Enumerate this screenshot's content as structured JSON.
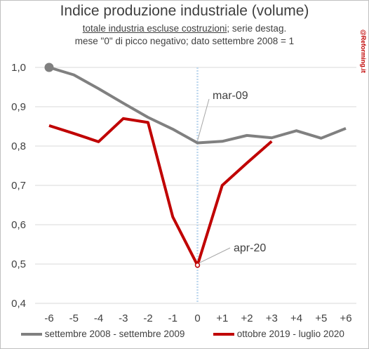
{
  "chart_data": {
    "type": "line",
    "title": "Indice produzione industriale (volume)",
    "subtitle_underlined": "totale industria escluse costruzioni",
    "subtitle_rest": "; serie destag.",
    "subtitle2": "mese \"0\" di picco negativo; dato settembre 2008 = 1",
    "watermark": "@Reforming.it",
    "x": [
      "-6",
      "-5",
      "-4",
      "-3",
      "-2",
      "-1",
      "0",
      "+1",
      "+2",
      "+3",
      "+4",
      "+5",
      "+6"
    ],
    "y_ticks": [
      "1,0",
      "0,9",
      "0,8",
      "0,7",
      "0,6",
      "0,5",
      "0,4"
    ],
    "ylim": [
      0.4,
      1.0
    ],
    "series": [
      {
        "name": "settembre 2008 - settembre 2009",
        "color": "#808080",
        "values": [
          1.0,
          0.981,
          0.946,
          0.909,
          0.873,
          0.843,
          0.808,
          0.812,
          0.827,
          0.821,
          0.839,
          0.82,
          0.845
        ]
      },
      {
        "name": "ottobre 2019 - luglio 2020",
        "color": "#c00000",
        "values": [
          0.852,
          0.832,
          0.811,
          0.87,
          0.86,
          0.62,
          0.497,
          0.7,
          0.757,
          0.812,
          null,
          null,
          null
        ]
      }
    ],
    "annotations": [
      {
        "text": "mar-09",
        "x": "0",
        "series": 0
      },
      {
        "text": "apr-20",
        "x": "0",
        "series": 1
      }
    ]
  }
}
